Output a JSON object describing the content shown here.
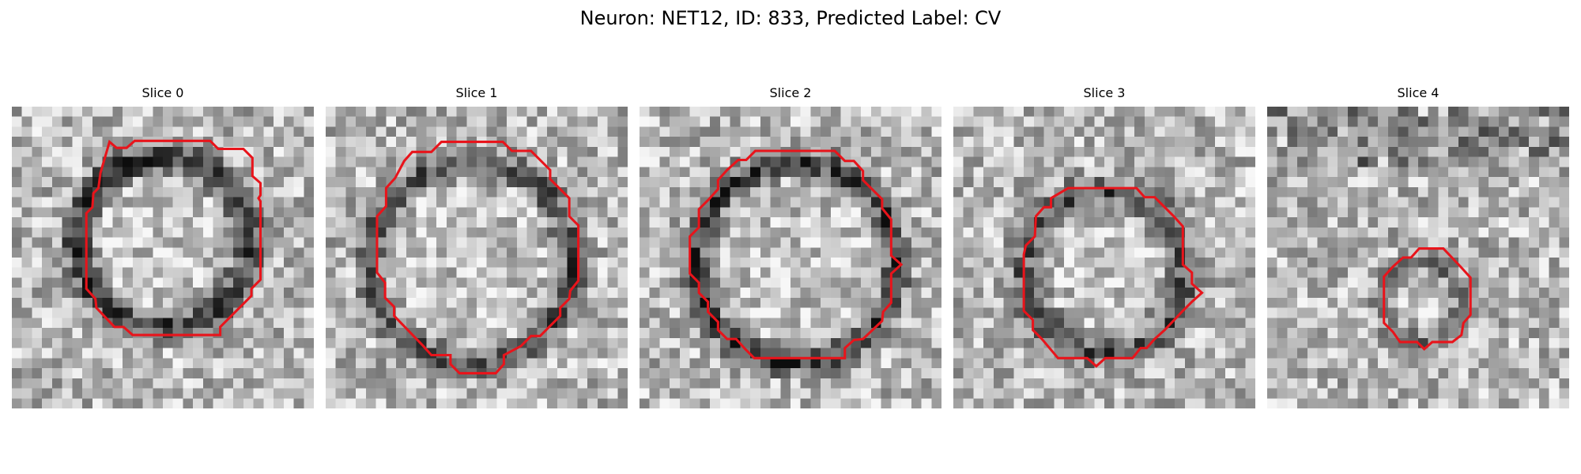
{
  "figure": {
    "title": "Neuron: NET12, ID: 833, Predicted Label: CV",
    "contour_color": "#e8141b",
    "panels": [
      {
        "title": "Slice 0",
        "seed": 11,
        "contour": "large-left"
      },
      {
        "title": "Slice 1",
        "seed": 23,
        "contour": "large-right"
      },
      {
        "title": "Slice 2",
        "seed": 37,
        "contour": "large-center"
      },
      {
        "title": "Slice 3",
        "seed": 53,
        "contour": "medium"
      },
      {
        "title": "Slice 4",
        "seed": 71,
        "contour": "small"
      }
    ]
  }
}
